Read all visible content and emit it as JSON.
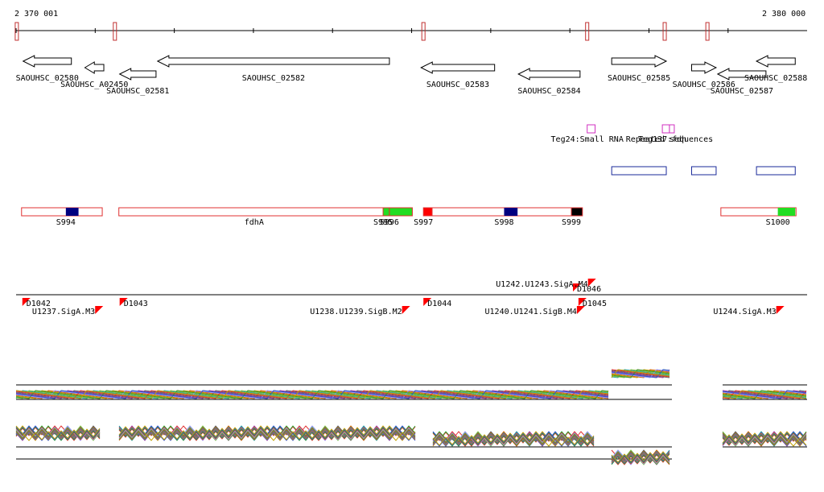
{
  "ruler": {
    "start_label": "2 370 001",
    "end_label": "2 380 000"
  },
  "colors": {
    "gene": "#000000",
    "annotation": "#e03030",
    "repeat": "#1a2a9a",
    "ncrna": "#d030c0",
    "segment_blue": "#000080",
    "segment_green": "#22dd22",
    "segment_black": "#000000",
    "marker": "#ff0000"
  },
  "genes": [
    {
      "label": "SAOUHSC_02580",
      "start": 2370090,
      "end": 2370700,
      "strand": "-",
      "row": 0
    },
    {
      "label": "SAOUHSC_A02450",
      "start": 2370870,
      "end": 2371110,
      "strand": "-",
      "row": 1
    },
    {
      "label": "SAOUHSC_02581",
      "start": 2371310,
      "end": 2371770,
      "strand": "-",
      "row": 2
    },
    {
      "label": "SAOUHSC_02582",
      "start": 2371790,
      "end": 2374720,
      "strand": "-",
      "row": 0
    },
    {
      "label": "SAOUHSC_02583",
      "start": 2375120,
      "end": 2376050,
      "strand": "-",
      "row": 1
    },
    {
      "label": "SAOUHSC_02584",
      "start": 2376350,
      "end": 2377130,
      "strand": "-",
      "row": 2
    },
    {
      "label": "SAOUHSC_02585",
      "start": 2377530,
      "end": 2378220,
      "strand": "+",
      "row": 0
    },
    {
      "label": "SAOUHSC_02586",
      "start": 2378540,
      "end": 2378850,
      "strand": "+",
      "row": 1
    },
    {
      "label": "SAOUHSC_02587",
      "start": 2378870,
      "end": 2379480,
      "strand": "-",
      "row": 2
    },
    {
      "label": "SAOUHSC_02588",
      "start": 2379360,
      "end": 2379850,
      "strand": "-",
      "row": 0
    }
  ],
  "ncrna": [
    {
      "label": "Teg24:Small RNA",
      "start": 2377220,
      "end": 2377320
    },
    {
      "label": "Teg137:fdh",
      "start": 2378170,
      "end": 2378260
    },
    {
      "label": "Repeated sequences",
      "start": 2378260,
      "end": 2378320
    }
  ],
  "repeat_boxes": [
    {
      "start": 2377530,
      "end": 2378220
    },
    {
      "start": 2378540,
      "end": 2378850
    },
    {
      "start": 2379360,
      "end": 2379850
    }
  ],
  "segments": [
    {
      "label": "S994",
      "start": 2370070,
      "end": 2371090,
      "fill": null,
      "fill_start": 2370630,
      "fill_end": 2370790,
      "fill_color": "segment_blue"
    },
    {
      "label": "fdhA",
      "start": 2371300,
      "end": 2374720,
      "fill": null
    },
    {
      "label": "S995",
      "start": 2374640,
      "end": 2374720,
      "fill": "segment_green"
    },
    {
      "label": "S996",
      "start": 2374720,
      "end": 2375010,
      "fill": "segment_green"
    },
    {
      "label": "S997",
      "start": 2375150,
      "end": 2375260,
      "fill": "marker"
    },
    {
      "label": "S998",
      "start": 2375260,
      "end": 2377130,
      "fill": null,
      "fill_start": 2376170,
      "fill_end": 2376340,
      "fill_color": "segment_blue"
    },
    {
      "label": "S999",
      "start": 2377020,
      "end": 2377160,
      "fill": "segment_black"
    },
    {
      "label": "S1000",
      "start": 2378910,
      "end": 2379860,
      "fill": null,
      "fill_start": 2379630,
      "fill_end": 2379850,
      "fill_color": "segment_green"
    }
  ],
  "markers": [
    {
      "label": "D1042",
      "pos": 2370080
    },
    {
      "label": "U1237.SigA.M3",
      "pos": 2371000
    },
    {
      "label": "D1043",
      "pos": 2371310
    },
    {
      "label": "U1238.U1239.SigB.M2",
      "pos": 2374880
    },
    {
      "label": "D1044",
      "pos": 2375150
    },
    {
      "label": "U1240.U1241.SigB.M4",
      "pos": 2377090
    },
    {
      "label": "D1045",
      "pos": 2377110
    },
    {
      "label": "D1046",
      "pos": 2377040
    },
    {
      "label": "U1242.U1243.SigA.M4",
      "pos": 2377230
    },
    {
      "label": "U1244.SigA.M3",
      "pos": 2379610
    }
  ]
}
